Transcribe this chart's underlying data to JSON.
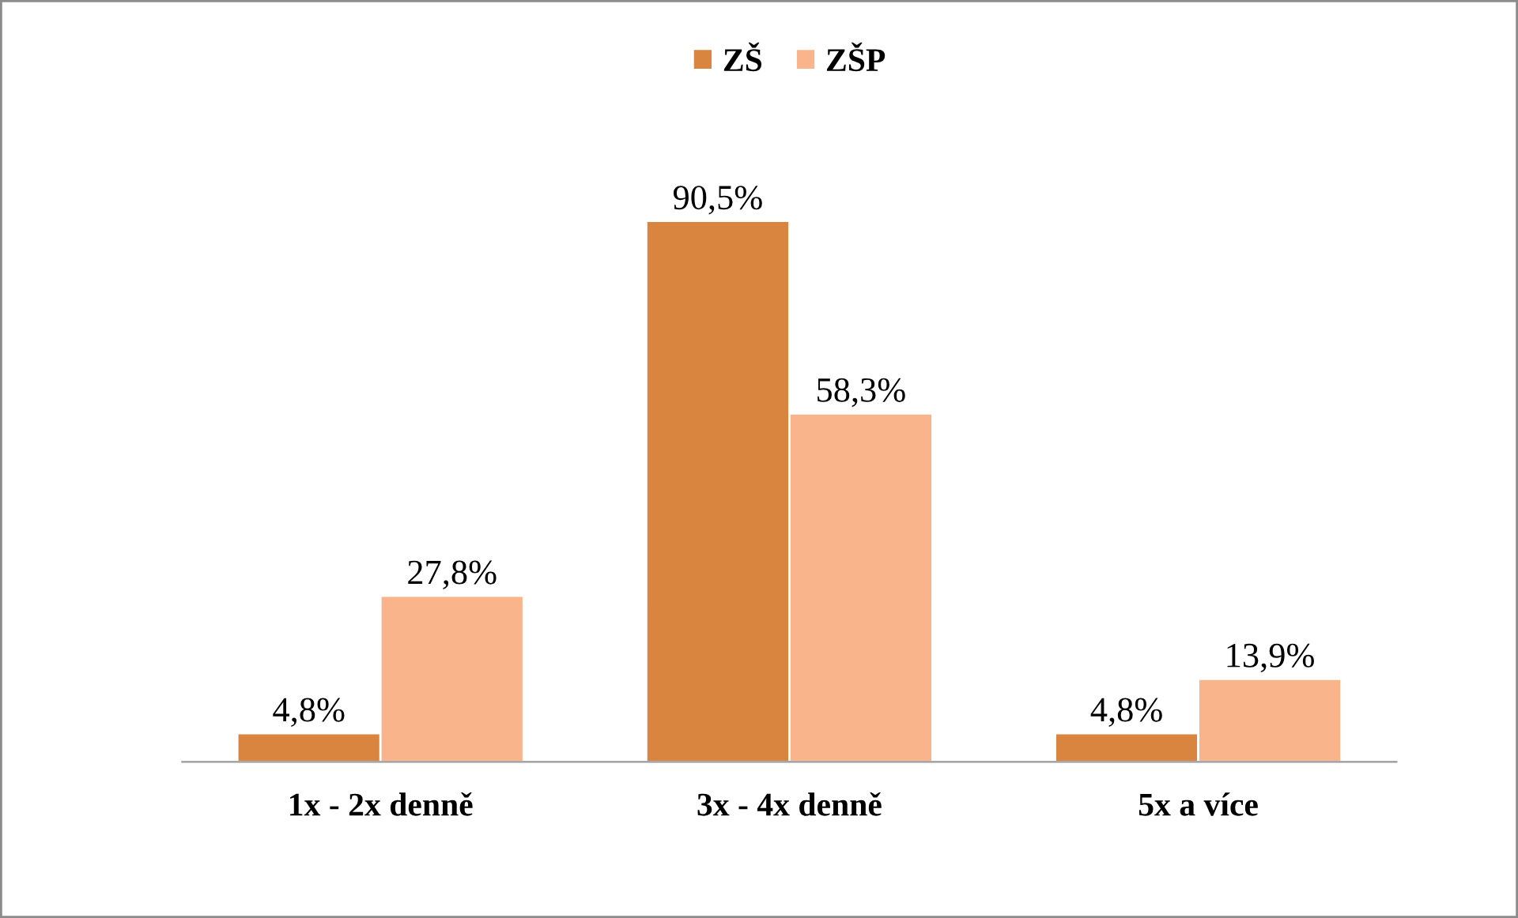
{
  "chart_data": {
    "type": "bar",
    "categories": [
      "1x - 2x denně",
      "3x - 4x denně",
      "5x a více"
    ],
    "series": [
      {
        "name": "ZŠ",
        "color": "#d9843f",
        "values": [
          4.8,
          90.5,
          4.8
        ],
        "value_labels": [
          "4,8%",
          "90,5%",
          "4,8%"
        ]
      },
      {
        "name": "ZŠP",
        "color": "#f9b48c",
        "values": [
          27.8,
          58.3,
          13.9
        ],
        "value_labels": [
          "27,8%",
          "58,3%",
          "13,9%"
        ]
      }
    ],
    "legend": "top",
    "grid": false
  }
}
